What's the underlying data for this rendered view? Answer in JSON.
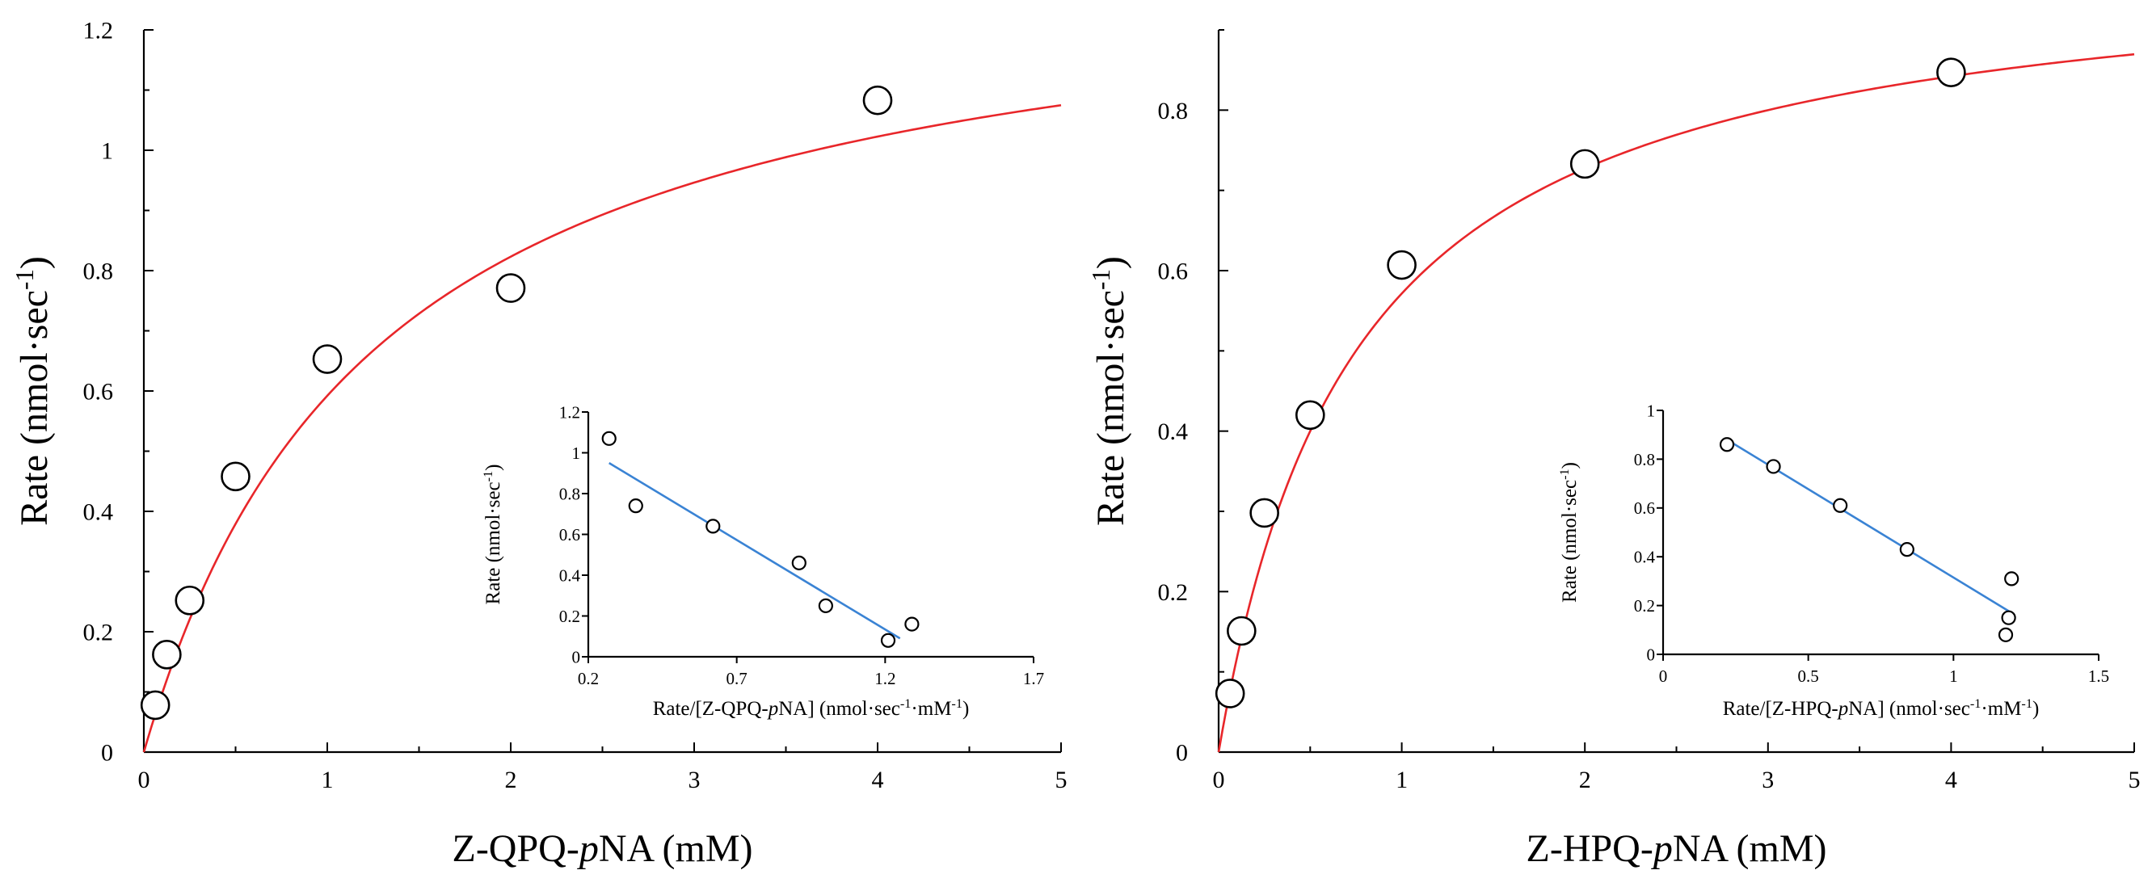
{
  "colors": {
    "fit_curve": "#e8262a",
    "fit_line": "#3a83d4",
    "axis": "#000000",
    "marker_fill": "#ffffff"
  },
  "chart_data": [
    {
      "type": "scatter",
      "panel": "left-main",
      "xlabel_pre": "Z-QPQ-",
      "xlabel_it": "p",
      "xlabel_post": "NA (mM)",
      "ylabel": "Rate (nmol·sec",
      "ylabel_sup": "-1",
      "ylabel_close": ")",
      "xlim": [
        0,
        5
      ],
      "ylim": [
        0,
        1.2
      ],
      "xticks": [
        0,
        1,
        2,
        3,
        4,
        5
      ],
      "yticks": [
        0,
        0.2,
        0.4,
        0.6,
        0.8,
        1,
        1.2
      ],
      "ytick_labels": [
        "0",
        "0.2",
        "0.4",
        "0.6",
        "0.8",
        "1",
        "1.2"
      ],
      "x": [
        0.0625,
        0.125,
        0.25,
        0.5,
        1,
        2,
        4
      ],
      "y": [
        0.078,
        0.162,
        0.252,
        0.458,
        0.653,
        0.771,
        1.083
      ],
      "fit": {
        "model": "michaelis-menten",
        "vmax": 1.35,
        "km": 1.28
      }
    },
    {
      "type": "scatter",
      "panel": "left-inset",
      "xlabel_pre": "Rate/[Z-QPQ-",
      "xlabel_it": "p",
      "xlabel_post": "NA] (nmol·sec",
      "xlabel_sup1": "-1",
      "xlabel_mid": "·mM",
      "xlabel_sup2": "-1",
      "xlabel_close": ")",
      "ylabel": "Rate (nmol·sec",
      "ylabel_sup": "-1",
      "ylabel_close": ")",
      "xlim": [
        0.2,
        1.7
      ],
      "ylim": [
        0,
        1.2
      ],
      "xticks": [
        0.2,
        0.7,
        1.2,
        1.7
      ],
      "xtick_labels": [
        "0.2",
        "0.7",
        "1.2",
        "1.7"
      ],
      "yticks": [
        0,
        0.2,
        0.4,
        0.6,
        0.8,
        1,
        1.2
      ],
      "ytick_labels": [
        "0",
        "0.2",
        "0.4",
        "0.6",
        "0.8",
        "1",
        "1.2"
      ],
      "x": [
        0.27,
        0.36,
        0.62,
        0.91,
        1.0,
        1.21,
        1.29
      ],
      "y": [
        1.07,
        0.74,
        0.64,
        0.46,
        0.25,
        0.08,
        0.16
      ],
      "fit_line": {
        "x": [
          0.27,
          1.25
        ],
        "y": [
          0.95,
          0.09
        ]
      }
    },
    {
      "type": "scatter",
      "panel": "right-main",
      "xlabel_pre": "Z-HPQ-",
      "xlabel_it": "p",
      "xlabel_post": "NA (mM)",
      "ylabel": "Rate (nmol·sec",
      "ylabel_sup": "-1",
      "ylabel_close": ")",
      "xlim": [
        0,
        5
      ],
      "ylim": [
        0,
        0.9
      ],
      "xticks": [
        0,
        1,
        2,
        3,
        4,
        5
      ],
      "yticks": [
        0,
        0.2,
        0.4,
        0.6,
        0.8
      ],
      "ytick_labels": [
        "0",
        "0.2",
        "0.4",
        "0.6",
        "0.8"
      ],
      "x": [
        0.0625,
        0.125,
        0.25,
        0.5,
        1,
        2,
        4
      ],
      "y": [
        0.073,
        0.151,
        0.298,
        0.42,
        0.607,
        0.733,
        0.847
      ],
      "fit": {
        "model": "michaelis-menten",
        "vmax": 1.0,
        "km": 0.75
      }
    },
    {
      "type": "scatter",
      "panel": "right-inset",
      "xlabel_pre": "Rate/[Z-HPQ-",
      "xlabel_it": "p",
      "xlabel_post": "NA] (nmol·sec",
      "xlabel_sup1": "-1",
      "xlabel_mid": "·mM",
      "xlabel_sup2": "-1",
      "xlabel_close": ")",
      "ylabel": "Rate (nmol·sec",
      "ylabel_sup": "-1",
      "ylabel_close": ")",
      "xlim": [
        0,
        1.5
      ],
      "ylim": [
        0,
        1
      ],
      "xticks": [
        0,
        0.5,
        1,
        1.5
      ],
      "xtick_labels": [
        "0",
        "0.5",
        "1",
        "1.5"
      ],
      "yticks": [
        0,
        0.2,
        0.4,
        0.6,
        0.8,
        1
      ],
      "ytick_labels": [
        "0",
        "0.2",
        "0.4",
        "0.6",
        "0.8",
        "1"
      ],
      "x": [
        0.22,
        0.38,
        0.61,
        0.84,
        1.18,
        1.19,
        1.2
      ],
      "y": [
        0.86,
        0.77,
        0.61,
        0.43,
        0.08,
        0.15,
        0.31
      ],
      "fit_line": {
        "x": [
          0.22,
          1.2
        ],
        "y": [
          0.88,
          0.17
        ]
      }
    }
  ]
}
